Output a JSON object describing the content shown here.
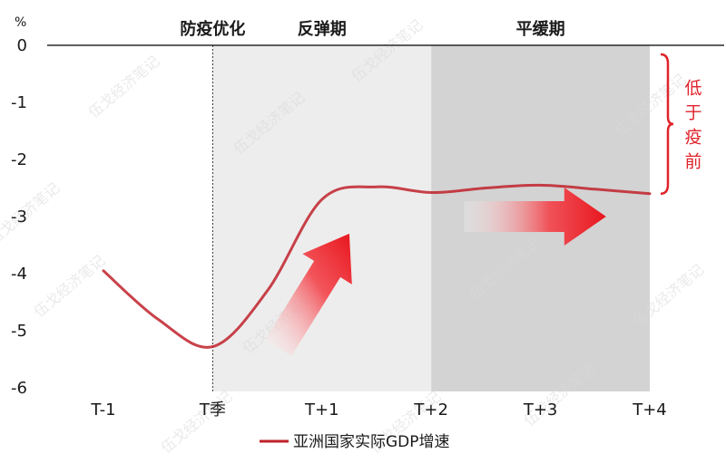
{
  "chart_data": {
    "type": "line",
    "y_unit": "%",
    "ylim": [
      -6,
      0
    ],
    "yticks": [
      "0",
      "-1",
      "-2",
      "-3",
      "-4",
      "-5",
      "-6"
    ],
    "categories": [
      "T-1",
      "T季",
      "T+1",
      "T+2",
      "T+3",
      "T+4"
    ],
    "phases": [
      {
        "label": "防疫优化",
        "from": "T季",
        "to": "T季"
      },
      {
        "label": "反弹期",
        "from": "T季",
        "to": "T+2",
        "shade": "#ededed"
      },
      {
        "label": "平缓期",
        "from": "T+2",
        "to": "T+4",
        "shade": "#d3d3d3"
      }
    ],
    "series": [
      {
        "name": "亚洲国家实际GDP增速",
        "color": "#c0212a",
        "x": [
          0,
          0.5,
          1,
          1.5,
          2,
          2.5,
          3,
          3.5,
          4,
          4.5,
          5
        ],
        "values": [
          -3.95,
          -4.8,
          -5.28,
          -4.3,
          -2.7,
          -2.48,
          -2.58,
          -2.5,
          -2.45,
          -2.52,
          -2.6
        ]
      }
    ],
    "annotation": {
      "text": "低于疫前",
      "color": "#e0232b",
      "range": [
        0,
        -2.6
      ]
    },
    "arrows": [
      {
        "direction": "up-right",
        "from_x": 1.6,
        "from_y": -5.3,
        "to_x": 2.25,
        "to_y": -3.3
      },
      {
        "direction": "right",
        "from_x": 3.3,
        "from_y": -3.0,
        "to_x": 4.6,
        "to_y": -3.0
      }
    ],
    "legend_position": "bottom-center",
    "watermark": "伍戈经济笔记"
  }
}
